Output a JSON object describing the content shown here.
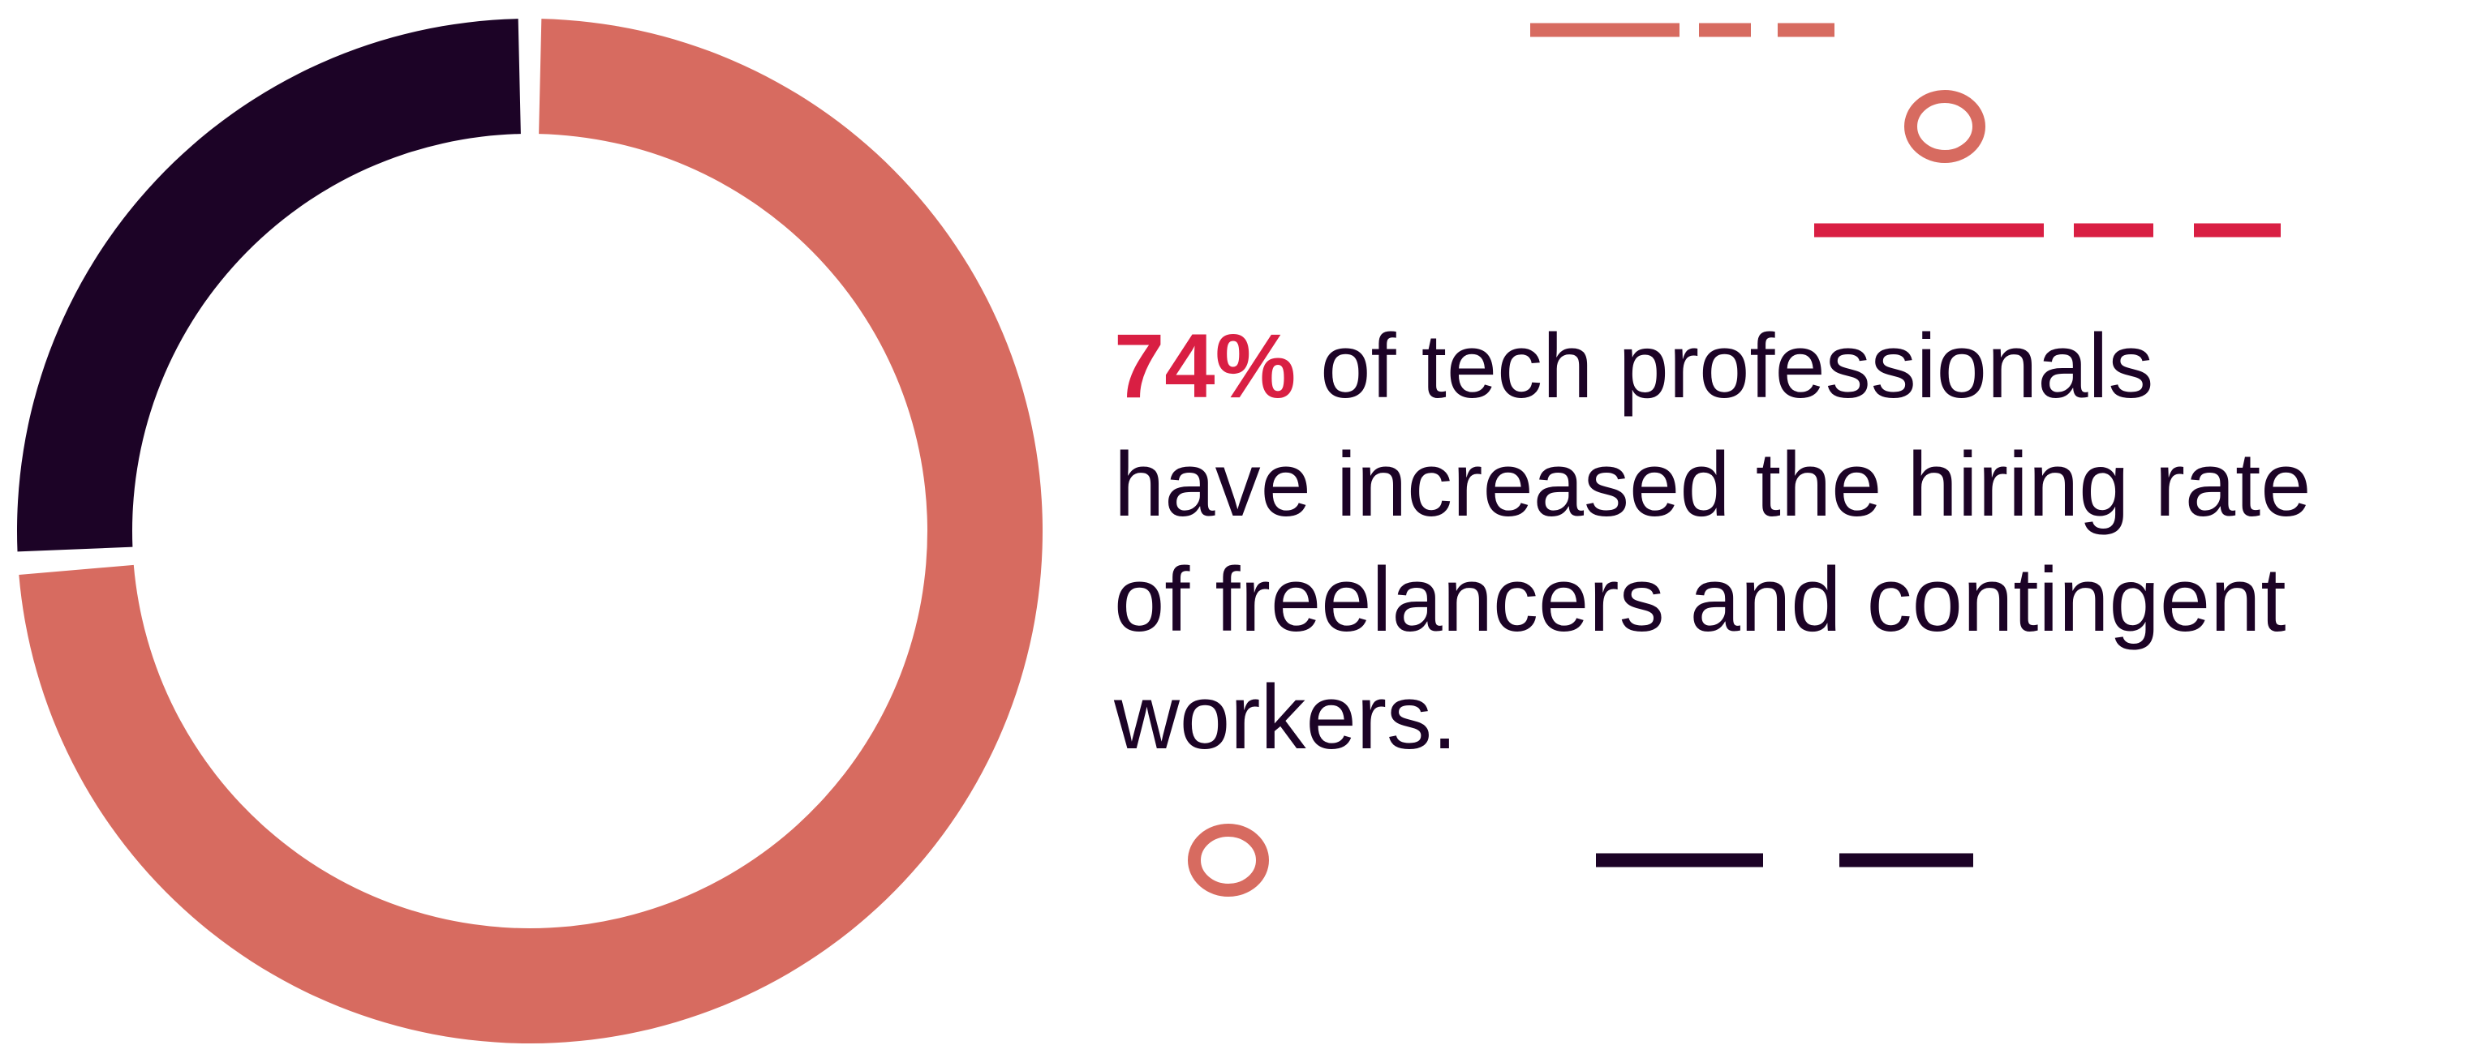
{
  "chart_data": {
    "type": "donut",
    "values": [
      74,
      26
    ],
    "value_labels": [
      "74%",
      null
    ],
    "colors": [
      "#d76b60",
      "#1c0326"
    ],
    "label_color": "#d91f43",
    "text_lines": [
      "of tech professionals",
      "have increased the hiring rate",
      "of freelancers and contingent",
      "workers."
    ]
  }
}
